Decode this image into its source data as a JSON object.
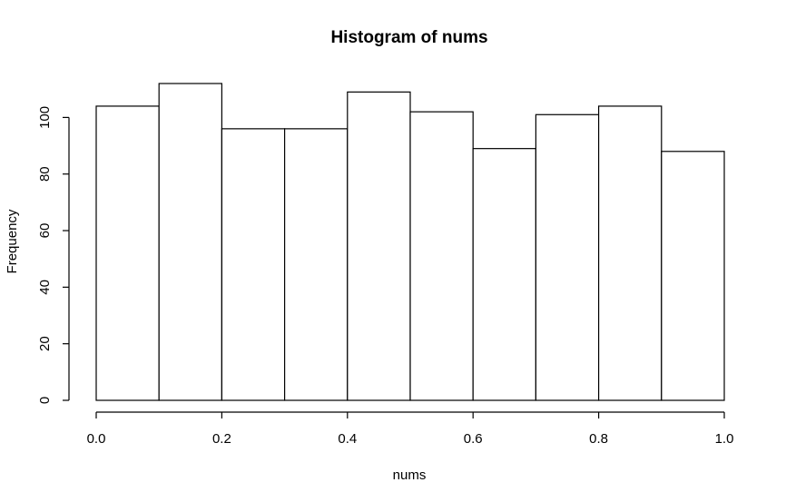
{
  "chart_data": {
    "type": "bar",
    "title": "Histogram of nums",
    "xlabel": "nums",
    "ylabel": "Frequency",
    "bins": [
      {
        "start": 0.0,
        "end": 0.1,
        "value": 104
      },
      {
        "start": 0.1,
        "end": 0.2,
        "value": 112
      },
      {
        "start": 0.2,
        "end": 0.3,
        "value": 96
      },
      {
        "start": 0.3,
        "end": 0.4,
        "value": 96
      },
      {
        "start": 0.4,
        "end": 0.5,
        "value": 109
      },
      {
        "start": 0.5,
        "end": 0.6,
        "value": 102
      },
      {
        "start": 0.6,
        "end": 0.7,
        "value": 89
      },
      {
        "start": 0.7,
        "end": 0.8,
        "value": 101
      },
      {
        "start": 0.8,
        "end": 0.9,
        "value": 104
      },
      {
        "start": 0.9,
        "end": 1.0,
        "value": 88
      }
    ],
    "xticks": [
      "0.0",
      "0.2",
      "0.4",
      "0.6",
      "0.8",
      "1.0"
    ],
    "yticks": [
      "0",
      "20",
      "40",
      "60",
      "80",
      "100"
    ],
    "xlim": [
      0,
      1
    ],
    "ylim": [
      0,
      112
    ],
    "grid": false,
    "bar_fill": "#ffffff",
    "bar_stroke": "#000000"
  }
}
